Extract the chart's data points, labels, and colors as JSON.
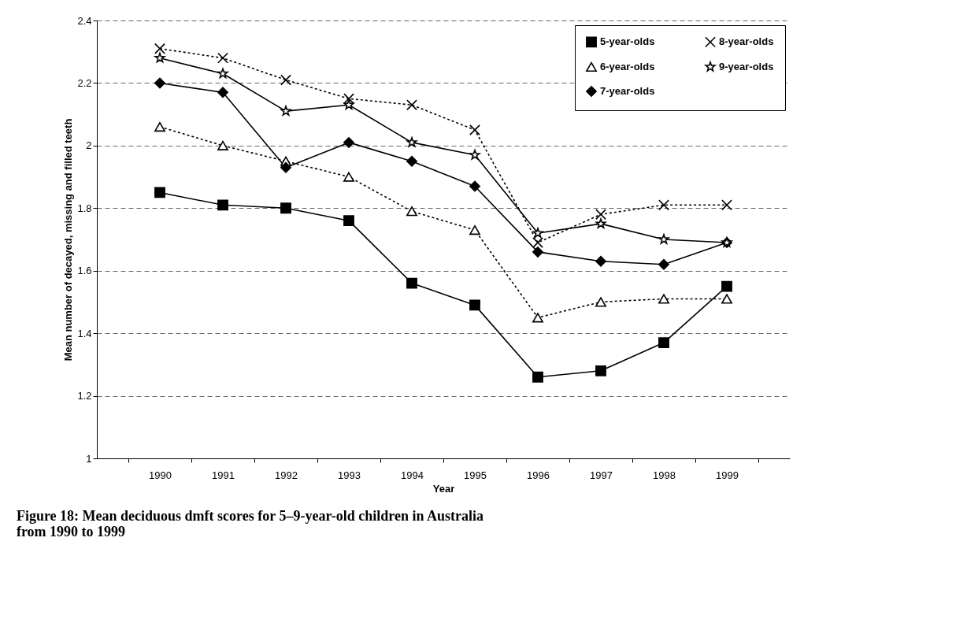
{
  "chart_data": {
    "type": "line",
    "xlabel": "Year",
    "ylabel": "Mean number of decayed, missing and filled teeth",
    "categories": [
      "1990",
      "1991",
      "1992",
      "1993",
      "1994",
      "1995",
      "1996",
      "1997",
      "1998",
      "1999"
    ],
    "ylim": [
      1,
      2.4
    ],
    "yticks": [
      1,
      1.2,
      1.4,
      1.6,
      1.8,
      2,
      2.2,
      2.4
    ],
    "grid": "y",
    "legend": "top right",
    "series": [
      {
        "name": "5-year-olds",
        "color": "#000000",
        "marker": "square",
        "line_style": "solid",
        "values": [
          1.85,
          1.81,
          1.8,
          1.76,
          1.56,
          1.49,
          1.26,
          1.28,
          1.37,
          1.55
        ]
      },
      {
        "name": "6-year-olds",
        "color": "#000000",
        "marker": "triangle",
        "line_style": "dotted",
        "values": [
          2.06,
          2.0,
          1.95,
          1.9,
          1.79,
          1.73,
          1.45,
          1.5,
          1.51,
          1.51
        ]
      },
      {
        "name": "7-year-olds",
        "color": "#000000",
        "marker": "diamond",
        "line_style": "solid",
        "values": [
          2.2,
          2.17,
          1.93,
          2.01,
          1.95,
          1.87,
          1.66,
          1.63,
          1.62,
          1.69
        ]
      },
      {
        "name": "8-year-olds",
        "color": "#000000",
        "marker": "cross",
        "line_style": "dotted",
        "values": [
          2.31,
          2.28,
          2.21,
          2.15,
          2.13,
          2.05,
          1.69,
          1.78,
          1.81,
          1.81
        ]
      },
      {
        "name": "9-year-olds",
        "color": "#000000",
        "marker": "star",
        "line_style": "solid",
        "values": [
          2.28,
          2.23,
          2.11,
          2.13,
          2.01,
          1.97,
          1.72,
          1.75,
          1.7,
          1.69
        ]
      }
    ],
    "annotations": [
      "Figure 18:  Mean deciduous dmft scores for 5–9-year-old children in Australia from 1990 to 1999"
    ]
  }
}
